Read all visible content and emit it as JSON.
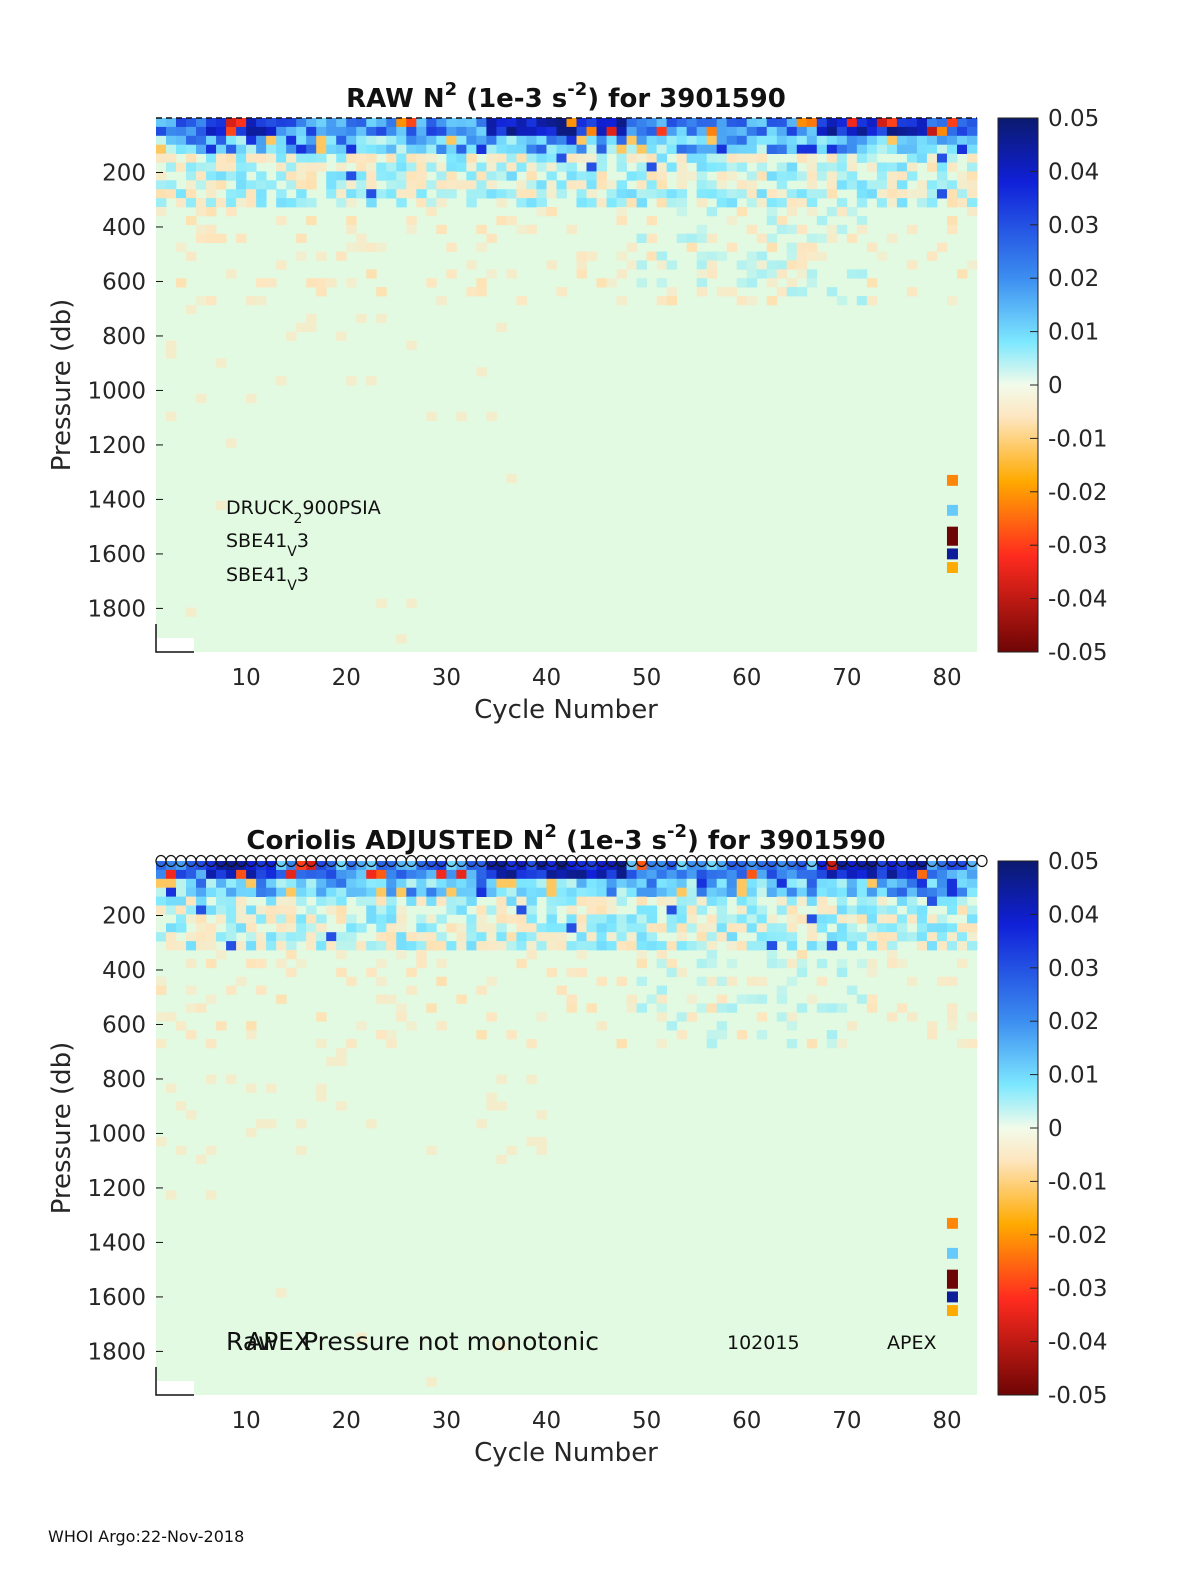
{
  "footer": "WHOI Argo:22-Nov-2018",
  "colorbar": {
    "min": -0.05,
    "max": 0.05,
    "ticks": [
      "0.05",
      "0.04",
      "0.03",
      "0.02",
      "0.01",
      "0",
      "-0.01",
      "-0.02",
      "-0.03",
      "-0.04",
      "-0.05"
    ]
  },
  "chart_data": [
    {
      "type": "heatmap",
      "title": {
        "prefix": "RAW N",
        "sup1": "2",
        "middle": " (1e-3 s",
        "sup2": "-2",
        "suffix": ") for 3901590"
      },
      "xlabel": "Cycle Number",
      "ylabel": "Pressure (db)",
      "xlim": [
        1,
        83
      ],
      "ylim": [
        1960,
        0
      ],
      "xticks": [
        "10",
        "20",
        "30",
        "40",
        "50",
        "60",
        "70",
        "80"
      ],
      "yticks": [
        "200",
        "400",
        "600",
        "800",
        "1000",
        "1200",
        "1400",
        "1600",
        "1800"
      ],
      "top_marker": "dashed",
      "annotations": [
        {
          "base": "DRUCK",
          "sub": "2",
          "rest": "900PSIA"
        },
        {
          "base": "SBE41",
          "sub": "V",
          "rest": "3"
        },
        {
          "base": "SBE41",
          "sub": "V",
          "rest": "3"
        }
      ]
    },
    {
      "type": "heatmap",
      "title": {
        "prefix": "Coriolis  ADJUSTED N",
        "sup1": "2",
        "middle": " (1e-3 s",
        "sup2": "-2",
        "suffix": ") for 3901590"
      },
      "xlabel": "Cycle Number",
      "ylabel": "Pressure (db)",
      "xlim": [
        1,
        83
      ],
      "ylim": [
        1960,
        0
      ],
      "xticks": [
        "10",
        "20",
        "30",
        "40",
        "50",
        "60",
        "70",
        "80"
      ],
      "yticks": [
        "200",
        "400",
        "600",
        "800",
        "1000",
        "1200",
        "1400",
        "1600",
        "1800"
      ],
      "top_marker": "circles",
      "overlay_texts": {
        "text_a": "Raw",
        "text_b": "APEX",
        "text_c": "Pressure not monotonic",
        "serial": "102015",
        "model": "APEX"
      }
    }
  ]
}
